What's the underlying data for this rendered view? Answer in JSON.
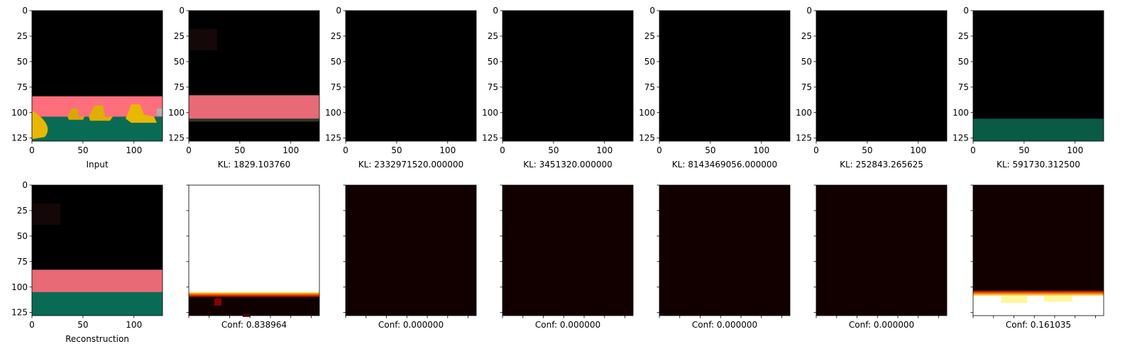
{
  "figure": {
    "rows": [
      {
        "panels": [
          {
            "caption": "Input",
            "yticks": true,
            "xticks": true,
            "scene": "input"
          },
          {
            "caption": "KL: 1829.103760",
            "yticks": true,
            "xticks": true,
            "scene": "recon_pink"
          },
          {
            "caption": "KL: 2332971520.000000",
            "yticks": true,
            "xticks": true,
            "scene": "black"
          },
          {
            "caption": "KL: 3451320.000000",
            "yticks": true,
            "xticks": true,
            "scene": "black"
          },
          {
            "caption": "KL: 8143469056.000000",
            "yticks": true,
            "xticks": true,
            "scene": "black"
          },
          {
            "caption": "KL: 252843.265625",
            "yticks": true,
            "xticks": true,
            "scene": "black"
          },
          {
            "caption": "KL: 591730.312500",
            "yticks": true,
            "xticks": true,
            "scene": "green_floor"
          }
        ]
      },
      {
        "panels": [
          {
            "caption": "Reconstruction",
            "yticks": true,
            "xticks": true,
            "scene": "reconstruction"
          },
          {
            "caption": "Conf: 0.838964",
            "yticks": false,
            "xticks": false,
            "scene": "conf_high"
          },
          {
            "caption": "Conf: 0.000000",
            "yticks": false,
            "xticks": false,
            "scene": "conf_zero"
          },
          {
            "caption": "Conf: 0.000000",
            "yticks": false,
            "xticks": false,
            "scene": "conf_zero"
          },
          {
            "caption": "Conf: 0.000000",
            "yticks": false,
            "xticks": false,
            "scene": "conf_zero"
          },
          {
            "caption": "Conf: 0.000000",
            "yticks": false,
            "xticks": false,
            "scene": "conf_zero"
          },
          {
            "caption": "Conf: 0.161035",
            "yticks": false,
            "xticks": false,
            "scene": "conf_low"
          }
        ]
      }
    ]
  },
  "chart_data": {
    "type": "heatmap",
    "image_size": [
      128,
      128
    ],
    "xlim": [
      0,
      128
    ],
    "ylim": [
      128,
      0
    ],
    "xticks": [
      0,
      50,
      100
    ],
    "yticks": [
      0,
      25,
      50,
      75,
      100,
      125
    ],
    "colors": {
      "black": "#000000",
      "pink": "#ff6e7c",
      "pink_recon": "#e86a76",
      "teal": "#0a6b55",
      "teal_dark": "#0a5a45",
      "yellow": "#e8b800",
      "conf_dark": "#120000",
      "conf_white": "#ffffff"
    },
    "scenes": {
      "input": {
        "pink_band_rows": [
          84,
          104
        ],
        "teal_rows": [
          104,
          128
        ]
      },
      "recon_pink": {
        "pink_band_rows": [
          83,
          106
        ]
      },
      "reconstruction": {
        "pink_band_rows": [
          83,
          105
        ],
        "teal_rows": [
          105,
          128
        ]
      },
      "green_floor": {
        "teal_rows": [
          106,
          128
        ]
      },
      "conf_high": {
        "white_rows": [
          0,
          107
        ],
        "dark_rows": [
          107,
          128
        ]
      },
      "conf_low": {
        "dark_rows": [
          0,
          106
        ],
        "white_rows": [
          106,
          128
        ]
      }
    }
  }
}
